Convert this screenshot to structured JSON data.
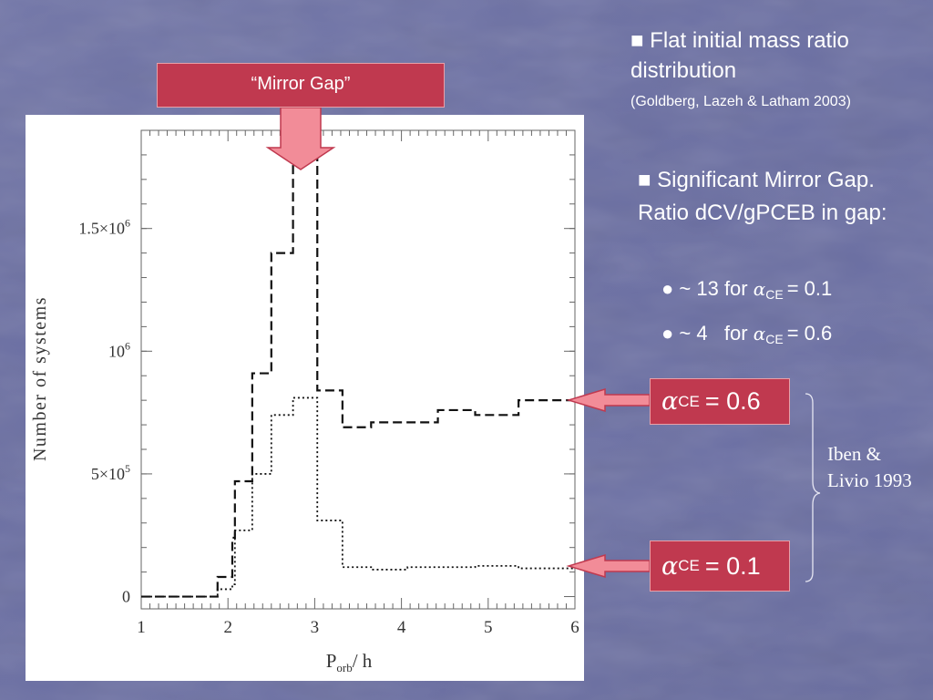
{
  "slide": {
    "bullet1": "■ Flat initial mass ratio distribution",
    "citation": "(Goldberg, Lazeh & Latham 2003)",
    "bullet2": "■ Significant Mirror Gap. Ratio dCV/gPCEB in gap:",
    "sub1": {
      "prefix": "● ~ 13 for ",
      "alpha": "α",
      "sub": "CE",
      "suffix": "= 0.1"
    },
    "sub2": {
      "prefix": "● ~ 4   for ",
      "alpha": "α",
      "sub": "CE",
      "suffix": "= 0.6"
    },
    "mirror_gap_label": "“Mirror Gap”",
    "callout_06": {
      "alpha": "α",
      "sub": "CE",
      "value": "= 0.6"
    },
    "callout_01": {
      "alpha": "α",
      "sub": "CE",
      "value": "= 0.1"
    },
    "reference": "Iben & Livio 1993",
    "colors": {
      "background": "#6c70a4",
      "callout": "#c0394f",
      "arrow": "#f28c98"
    }
  },
  "chart_data": {
    "type": "line",
    "style": "step histogram",
    "xlabel": "P",
    "xlabel_sub": "orb",
    "xlabel_unit": "/  h",
    "ylabel": "Number of systems",
    "xlim": [
      1,
      6
    ],
    "ylim": [
      -0.05,
      1.9
    ],
    "x_ticks": [
      "1",
      "2",
      "3",
      "4",
      "5",
      "6"
    ],
    "y_ticks": [
      {
        "value": 0,
        "base": "0",
        "exp": ""
      },
      {
        "value": 0.5,
        "base": "5×10",
        "exp": "5"
      },
      {
        "value": 1.0,
        "base": "10",
        "exp": "6"
      },
      {
        "value": 1.5,
        "base": "1.5×10",
        "exp": "6"
      }
    ],
    "y_unit": "millions",
    "series": [
      {
        "line_style": "dashed",
        "edges": [
          1.0,
          1.88,
          1.95,
          2.05,
          2.08,
          2.28,
          2.5,
          2.75,
          3.03,
          3.32,
          3.65,
          4.07,
          4.42,
          4.85,
          5.35,
          6.0
        ],
        "values": [
          0,
          0.08,
          0.08,
          0.24,
          0.47,
          0.91,
          1.4,
          1.8,
          0.84,
          0.69,
          0.71,
          0.71,
          0.76,
          0.74,
          0.8
        ]
      },
      {
        "line_style": "dotted",
        "edges": [
          1.0,
          1.88,
          1.95,
          2.05,
          2.08,
          2.28,
          2.5,
          2.75,
          3.03,
          3.32,
          3.65,
          4.07,
          4.42,
          4.85,
          5.35,
          6.0
        ],
        "values": [
          0,
          0.03,
          0.03,
          0.05,
          0.27,
          0.5,
          0.74,
          0.81,
          0.31,
          0.12,
          0.11,
          0.12,
          0.12,
          0.125,
          0.115
        ]
      }
    ]
  }
}
